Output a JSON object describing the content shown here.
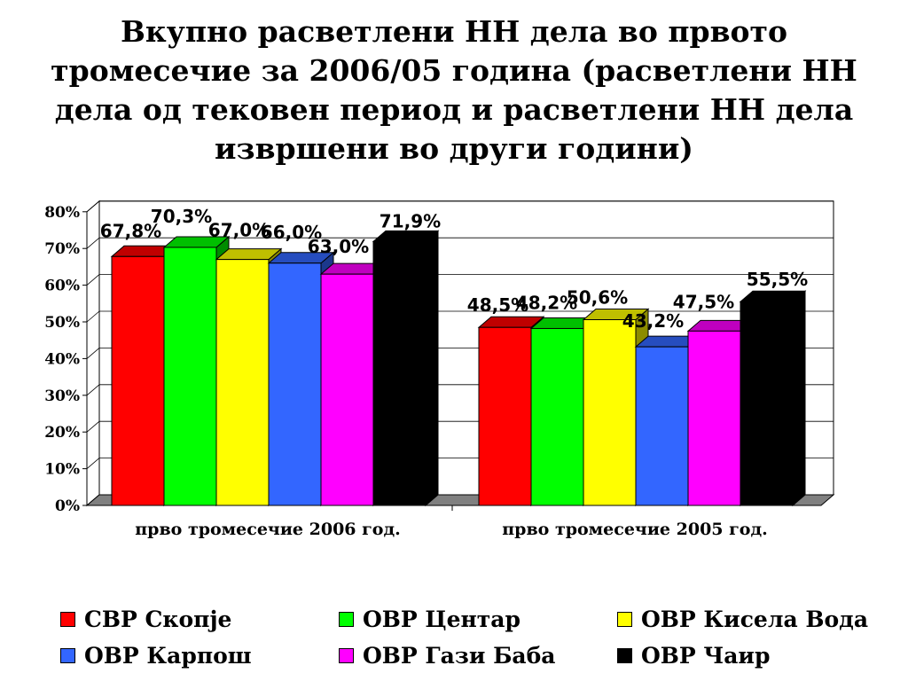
{
  "title_lines": [
    "Вкупно расветлени НН дела во првото",
    "тромесечие за 2006/05 година (расветлени НН",
    "дела од тековен период и расветлени НН дела",
    "извршени во други години)"
  ],
  "chart_data": {
    "type": "bar",
    "title": "Вкупно расветлени НН дела во првото тромесечие за 2006/05 година (расветлени НН дела од тековен период и расветлени НН дела извршени во други години)",
    "categories": [
      "прво тромесечие 2006 год.",
      "прво тромесечие 2005 год."
    ],
    "series": [
      {
        "name": "СВР Скопје",
        "values": [
          67.8,
          48.5
        ],
        "labels": [
          "67,8%",
          "48,5%"
        ],
        "color": "#ff0000"
      },
      {
        "name": "ОВР Центар",
        "values": [
          70.3,
          48.2
        ],
        "labels": [
          "70,3%",
          "48,2%"
        ],
        "color": "#00ff00"
      },
      {
        "name": "ОВР Кисела Вода",
        "values": [
          67.0,
          50.6
        ],
        "labels": [
          "67,0%",
          "50,6%"
        ],
        "color": "#ffff00"
      },
      {
        "name": "ОВР Карпош",
        "values": [
          66.0,
          43.2
        ],
        "labels": [
          "66,0%",
          "43,2%"
        ],
        "color": "#3366ff"
      },
      {
        "name": "ОВР Гази Баба",
        "values": [
          63.0,
          47.5
        ],
        "labels": [
          "63,0%",
          "47,5%"
        ],
        "color": "#ff00ff"
      },
      {
        "name": "ОВР Чаир",
        "values": [
          71.9,
          55.5
        ],
        "labels": [
          "71,9%",
          "55,5%"
        ],
        "color": "#000000"
      }
    ],
    "y_ticks": [
      "0%",
      "10%",
      "20%",
      "30%",
      "40%",
      "50%",
      "60%",
      "70%",
      "80%"
    ],
    "ylim": [
      0,
      80
    ],
    "grid": true,
    "legend_position": "bottom",
    "style": "3d-clustered-bar"
  }
}
